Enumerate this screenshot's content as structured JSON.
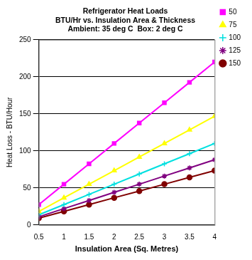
{
  "chart_data": {
    "type": "line",
    "title": [
      "Refrigerator Heat Loads",
      "BTU/Hr vs. Insulation Area & Thickness",
      "Ambient: 35 deg C  Box: 2 deg C"
    ],
    "x_label": "Insulation Area (Sq. Metres)",
    "y_label": "Heat Loss - BTU/Hour",
    "x": [
      0.5,
      1,
      1.5,
      2,
      2.5,
      3,
      3.5,
      4
    ],
    "xlim": [
      0.5,
      4
    ],
    "xticks": [
      0.5,
      1,
      1.5,
      2,
      2.5,
      3,
      3.5,
      4
    ],
    "ylim": [
      0,
      250
    ],
    "yticks": [
      0,
      50,
      100,
      150,
      200,
      250
    ],
    "grid": "y",
    "legend": "right",
    "series": [
      {
        "name": "50",
        "color": "#ff00ff",
        "marker": "square",
        "line_style": "solid",
        "values": [
          27.5,
          55,
          82.5,
          110,
          137.5,
          165,
          192.5,
          220
        ]
      },
      {
        "name": "75",
        "color": "#ffff00",
        "marker": "triangle",
        "line_style": "solid",
        "values": [
          18.3,
          36.7,
          55,
          73.3,
          91.7,
          110,
          128.3,
          146.7
        ]
      },
      {
        "name": "100",
        "color": "#00e0e0",
        "marker": "cross",
        "line_style": "solid",
        "values": [
          13.75,
          27.5,
          41.25,
          55,
          68.75,
          82.5,
          96.25,
          110
        ]
      },
      {
        "name": "125",
        "color": "#800080",
        "marker": "star",
        "line_style": "solid",
        "values": [
          11,
          22,
          33,
          44,
          55,
          66,
          77,
          88
        ]
      },
      {
        "name": "150",
        "color": "#800000",
        "marker": "circle",
        "line_style": "solid",
        "values": [
          9.2,
          18.3,
          27.5,
          36.7,
          45.8,
          55,
          64.2,
          73.3
        ]
      }
    ]
  }
}
